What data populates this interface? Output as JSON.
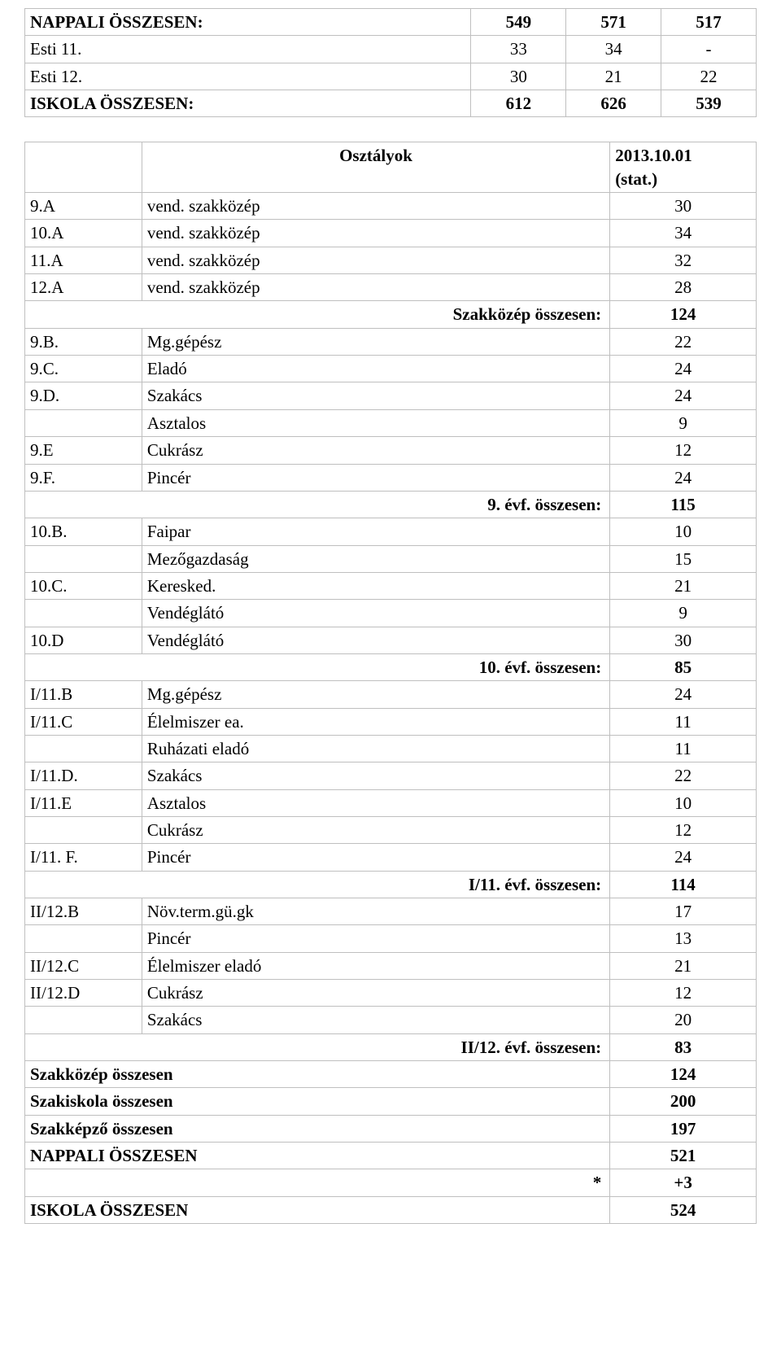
{
  "topTable": {
    "rows": [
      {
        "label": "NAPPALI ÖSSZESEN:",
        "bold": true,
        "vals": [
          "549",
          "571",
          "517"
        ]
      },
      {
        "label": "Esti 11.",
        "bold": false,
        "vals": [
          "33",
          "34",
          "-"
        ]
      },
      {
        "label": "Esti 12.",
        "bold": false,
        "vals": [
          "30",
          "21",
          "22"
        ]
      },
      {
        "label": "ISKOLA ÖSSZESEN:",
        "bold": true,
        "vals": [
          "612",
          "626",
          "539"
        ]
      }
    ]
  },
  "bottomTable": {
    "header": {
      "col1": "",
      "col2": "Osztályok",
      "col3": "2013.10.01\n(stat.)"
    },
    "body": [
      {
        "c1": "9.A",
        "c2": "vend. szakközép",
        "c3": "30"
      },
      {
        "c1": "10.A",
        "c2": "vend. szakközép",
        "c3": "34"
      },
      {
        "c1": "11.A",
        "c2": "vend. szakközép",
        "c3": "32"
      },
      {
        "c1": "12.A",
        "c2": "vend. szakközép",
        "c3": "28"
      },
      {
        "merge": "Szakközép összesen:",
        "c3": "124",
        "bold": true
      },
      {
        "c1": "9.B.",
        "c2": "Mg.gépész",
        "c3": "22"
      },
      {
        "c1": "9.C.",
        "c2": "Eladó",
        "c3": "24"
      },
      {
        "c1": "9.D.",
        "c2": "Szakács",
        "c3": "24"
      },
      {
        "c1": "",
        "c2": "Asztalos",
        "c3": "9"
      },
      {
        "c1": "9.E",
        "c2": "Cukrász",
        "c3": "12"
      },
      {
        "c1": "9.F.",
        "c2": "Pincér",
        "c3": "24"
      },
      {
        "merge": "9. évf. összesen:",
        "c3": "115",
        "bold": true
      },
      {
        "c1": "10.B.",
        "c2": "Faipar",
        "c3": "10"
      },
      {
        "c1": "",
        "c2": "Mezőgazdaság",
        "c3": "15"
      },
      {
        "c1": "10.C.",
        "c2": "Keresked.",
        "c3": "21"
      },
      {
        "c1": "",
        "c2": "Vendéglátó",
        "c3": "9"
      },
      {
        "c1": "10.D",
        "c2": "Vendéglátó",
        "c3": "30"
      },
      {
        "merge": "10. évf. összesen:",
        "c3": "85",
        "bold": true
      },
      {
        "c1": "I/11.B",
        "c2": "Mg.gépész",
        "c3": "24"
      },
      {
        "c1": "I/11.C",
        "c2": "Élelmiszer ea.",
        "c3": "11"
      },
      {
        "c1": "",
        "c2": "Ruházati eladó",
        "c3": "11"
      },
      {
        "c1": "I/11.D.",
        "c2": "Szakács",
        "c3": "22"
      },
      {
        "c1": "I/11.E",
        "c2": "Asztalos",
        "c3": "10"
      },
      {
        "c1": "",
        "c2": "Cukrász",
        "c3": "12"
      },
      {
        "c1": "I/11. F.",
        "c2": "Pincér",
        "c3": "24"
      },
      {
        "merge": "I/11. évf. összesen:",
        "c3": "114",
        "bold": true
      },
      {
        "c1": "II/12.B",
        "c2": "Növ.term.gü.gk",
        "c3": "17"
      },
      {
        "c1": "",
        "c2": "Pincér",
        "c3": "13"
      },
      {
        "c1": "II/12.C",
        "c2": "Élelmiszer eladó",
        "c3": "21"
      },
      {
        "c1": "II/12.D",
        "c2": "Cukrász",
        "c3": "12"
      },
      {
        "c1": "",
        "c2": "Szakács",
        "c3": "20"
      },
      {
        "merge": "II/12. évf. összesen:",
        "c3": "83",
        "bold": true
      },
      {
        "full": "Szakközép összesen",
        "c3": "124",
        "bold": true
      },
      {
        "full": "Szakiskola összesen",
        "c3": "200",
        "bold": true
      },
      {
        "full": "Szakképző összesen",
        "c3": "197",
        "bold": true
      },
      {
        "full": "NAPPALI ÖSSZESEN",
        "c3": "521",
        "bold": true
      },
      {
        "merge": "*",
        "c3": "+3",
        "bold": true
      },
      {
        "full": "ISKOLA ÖSSZESEN",
        "c3": "524",
        "bold": true
      }
    ]
  }
}
